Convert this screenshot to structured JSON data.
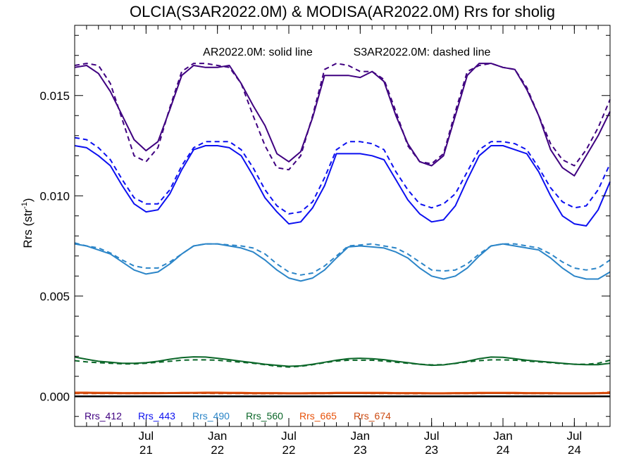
{
  "chart_data": {
    "type": "line",
    "title": "OLCIA(S3AR2022.0M) & MODISA(AR2022.0M)  Rrs for sholig",
    "annotation": {
      "solid": "AR2022.0M: solid line",
      "dashed": "S3AR2022.0M: dashed line"
    },
    "ylabel": "Rrs (str",
    "ylabel_sup": "-1",
    "ylabel_close": ")",
    "ylim": [
      -0.0015,
      0.0185
    ],
    "xlim": [
      "2021-01",
      "2024-10"
    ],
    "y_ticks": [
      {
        "value": 0.0,
        "label": "0.000"
      },
      {
        "value": 0.005,
        "label": "0.005"
      },
      {
        "value": 0.01,
        "label": "0.010"
      },
      {
        "value": 0.015,
        "label": "0.015"
      }
    ],
    "x_ticks": [
      {
        "x": "2021-07",
        "month": "Jul",
        "year": "21"
      },
      {
        "x": "2022-01",
        "month": "Jan",
        "year": "22"
      },
      {
        "x": "2022-07",
        "month": "Jul",
        "year": "22"
      },
      {
        "x": "2023-01",
        "month": "Jan",
        "year": "23"
      },
      {
        "x": "2023-07",
        "month": "Jul",
        "year": "23"
      },
      {
        "x": "2024-01",
        "month": "Jan",
        "year": "24"
      },
      {
        "x": "2024-07",
        "month": "Jul",
        "year": "24"
      }
    ],
    "x": [
      "2021-01",
      "2021-02",
      "2021-03",
      "2021-04",
      "2021-05",
      "2021-06",
      "2021-07",
      "2021-08",
      "2021-09",
      "2021-10",
      "2021-11",
      "2021-12",
      "2022-01",
      "2022-02",
      "2022-03",
      "2022-04",
      "2022-05",
      "2022-06",
      "2022-07",
      "2022-08",
      "2022-09",
      "2022-10",
      "2022-11",
      "2022-12",
      "2023-01",
      "2023-02",
      "2023-03",
      "2023-04",
      "2023-05",
      "2023-06",
      "2023-07",
      "2023-08",
      "2023-09",
      "2023-10",
      "2023-11",
      "2023-12",
      "2024-01",
      "2024-02",
      "2024-03",
      "2024-04",
      "2024-05",
      "2024-06",
      "2024-07",
      "2024-08",
      "2024-09",
      "2024-10"
    ],
    "series": [
      {
        "name": "Rrs_412",
        "color": "#3f0080",
        "style": "solid",
        "values": [
          0.0164,
          0.0165,
          0.0161,
          0.0152,
          0.014,
          0.0128,
          0.01225,
          0.0127,
          0.0143,
          0.016,
          0.0165,
          0.0164,
          0.0164,
          0.0165,
          0.0156,
          0.0145,
          0.0135,
          0.0121,
          0.0117,
          0.0122,
          0.0139,
          0.016,
          0.016,
          0.016,
          0.0159,
          0.0162,
          0.0157,
          0.014,
          0.0126,
          0.0117,
          0.0115,
          0.012,
          0.014,
          0.016,
          0.0166,
          0.0166,
          0.0164,
          0.0163,
          0.0153,
          0.014,
          0.0123,
          0.0114,
          0.011,
          0.012,
          0.013,
          0.0142
        ]
      },
      {
        "name": "Rrs_412",
        "color": "#3f0080",
        "style": "dashed",
        "values": [
          0.0165,
          0.0166,
          0.0165,
          0.0156,
          0.0138,
          0.012,
          0.0117,
          0.0124,
          0.0144,
          0.0162,
          0.0166,
          0.0166,
          0.0165,
          0.0164,
          0.0156,
          0.014,
          0.0125,
          0.0114,
          0.0113,
          0.012,
          0.014,
          0.0163,
          0.0166,
          0.0165,
          0.0162,
          0.0162,
          0.0158,
          0.0142,
          0.0125,
          0.0117,
          0.0116,
          0.0121,
          0.0142,
          0.0162,
          0.0165,
          0.0166,
          0.0164,
          0.0163,
          0.0154,
          0.014,
          0.0126,
          0.0118,
          0.0115,
          0.0123,
          0.0134,
          0.0148
        ]
      },
      {
        "name": "Rrs_443",
        "color": "#0c10f0",
        "style": "solid",
        "values": [
          0.0125,
          0.0124,
          0.012,
          0.0115,
          0.0105,
          0.0096,
          0.0092,
          0.0093,
          0.0101,
          0.0113,
          0.0123,
          0.0125,
          0.0125,
          0.0124,
          0.012,
          0.011,
          0.0099,
          0.0092,
          0.0086,
          0.0087,
          0.0094,
          0.0105,
          0.0121,
          0.0121,
          0.0121,
          0.012,
          0.0118,
          0.0108,
          0.0098,
          0.0091,
          0.0087,
          0.0088,
          0.0095,
          0.0108,
          0.012,
          0.0125,
          0.0125,
          0.0123,
          0.0121,
          0.0112,
          0.01,
          0.009,
          0.0086,
          0.0085,
          0.0093,
          0.0107
        ]
      },
      {
        "name": "Rrs_443",
        "color": "#0c10f0",
        "style": "dashed",
        "values": [
          0.0129,
          0.0128,
          0.0124,
          0.0118,
          0.0108,
          0.0099,
          0.0096,
          0.0096,
          0.0103,
          0.0115,
          0.0124,
          0.0127,
          0.0127,
          0.0127,
          0.0123,
          0.0114,
          0.0103,
          0.0095,
          0.0091,
          0.0092,
          0.0097,
          0.0109,
          0.0123,
          0.0127,
          0.0127,
          0.0126,
          0.0123,
          0.0112,
          0.0103,
          0.0096,
          0.0094,
          0.0096,
          0.0101,
          0.0112,
          0.0123,
          0.0127,
          0.0127,
          0.0126,
          0.0123,
          0.0114,
          0.0104,
          0.0097,
          0.0094,
          0.0095,
          0.0103,
          0.0116
        ]
      },
      {
        "name": "Rrs_490",
        "color": "#2b85c8",
        "style": "solid",
        "values": [
          0.0076,
          0.0075,
          0.0073,
          0.0071,
          0.0067,
          0.0063,
          0.0061,
          0.0062,
          0.0066,
          0.0071,
          0.0075,
          0.0076,
          0.0076,
          0.0075,
          0.0074,
          0.0072,
          0.0068,
          0.0063,
          0.0059,
          0.00575,
          0.0059,
          0.0063,
          0.0069,
          0.00745,
          0.0075,
          0.00745,
          0.0074,
          0.0072,
          0.0069,
          0.0064,
          0.006,
          0.00585,
          0.006,
          0.0064,
          0.007,
          0.0075,
          0.0076,
          0.0075,
          0.0074,
          0.0073,
          0.0069,
          0.0064,
          0.006,
          0.00585,
          0.00585,
          0.0062
        ]
      },
      {
        "name": "Rrs_490",
        "color": "#2b85c8",
        "style": "dashed",
        "values": [
          0.00765,
          0.0075,
          0.0074,
          0.00715,
          0.0068,
          0.0065,
          0.0064,
          0.0064,
          0.0067,
          0.0071,
          0.0075,
          0.0076,
          0.0076,
          0.00755,
          0.0075,
          0.0074,
          0.0071,
          0.0066,
          0.0062,
          0.00605,
          0.00615,
          0.0065,
          0.007,
          0.0075,
          0.00755,
          0.0076,
          0.0075,
          0.0074,
          0.0071,
          0.0067,
          0.0063,
          0.00625,
          0.0063,
          0.0066,
          0.0071,
          0.0075,
          0.0076,
          0.0076,
          0.0075,
          0.0074,
          0.0071,
          0.0067,
          0.0064,
          0.0063,
          0.0064,
          0.0068
        ]
      },
      {
        "name": "Rrs_560",
        "color": "#0a6628",
        "style": "solid",
        "values": [
          0.00196,
          0.00185,
          0.00175,
          0.0017,
          0.00165,
          0.00165,
          0.00168,
          0.00175,
          0.00185,
          0.00193,
          0.00197,
          0.00196,
          0.0019,
          0.00183,
          0.00175,
          0.00168,
          0.0016,
          0.00155,
          0.0015,
          0.00152,
          0.0016,
          0.0017,
          0.0018,
          0.00188,
          0.0019,
          0.00188,
          0.00183,
          0.00175,
          0.00168,
          0.0016,
          0.00155,
          0.00157,
          0.00165,
          0.00175,
          0.00188,
          0.00196,
          0.00195,
          0.00188,
          0.0018,
          0.00175,
          0.0017,
          0.00165,
          0.0016,
          0.00158,
          0.00158,
          0.00165
        ]
      },
      {
        "name": "Rrs_560",
        "color": "#0a6628",
        "style": "dashed",
        "values": [
          0.00178,
          0.00172,
          0.00168,
          0.00165,
          0.00162,
          0.00162,
          0.00165,
          0.0017,
          0.00175,
          0.0018,
          0.00182,
          0.00182,
          0.0018,
          0.00175,
          0.0017,
          0.00165,
          0.00158,
          0.0015,
          0.00146,
          0.0015,
          0.00158,
          0.00168,
          0.00176,
          0.0018,
          0.0018,
          0.0018,
          0.00176,
          0.0017,
          0.00165,
          0.0016,
          0.00157,
          0.00158,
          0.00164,
          0.00172,
          0.00178,
          0.00182,
          0.00182,
          0.0018,
          0.00176,
          0.00172,
          0.00168,
          0.00163,
          0.0016,
          0.0016,
          0.00165,
          0.0018
        ]
      },
      {
        "name": "Rrs_665",
        "color": "#e8520a",
        "style": "solid",
        "values": [
          0.0002,
          0.0002,
          0.00019,
          0.00019,
          0.00018,
          0.00018,
          0.00018,
          0.00018,
          0.00018,
          0.00019,
          0.00019,
          0.0002,
          0.0002,
          0.00019,
          0.00019,
          0.00018,
          0.00018,
          0.00018,
          0.00017,
          0.00017,
          0.00018,
          0.00018,
          0.00019,
          0.00019,
          0.00019,
          0.00019,
          0.00019,
          0.00018,
          0.00018,
          0.00018,
          0.00017,
          0.00017,
          0.00018,
          0.00018,
          0.00019,
          0.00019,
          0.00019,
          0.00019,
          0.00018,
          0.00018,
          0.00018,
          0.00017,
          0.00017,
          0.00017,
          0.00018,
          0.00019
        ]
      },
      {
        "name": "Rrs_665",
        "color": "#e8520a",
        "style": "dashed",
        "values": [
          0.00017,
          0.00017,
          0.00017,
          0.00017,
          0.00017,
          0.00017,
          0.00018,
          0.00018,
          0.00018,
          0.00018,
          0.00018,
          0.00018,
          0.00017,
          0.00017,
          0.00017,
          0.00016,
          0.00016,
          0.00016,
          0.00016,
          0.00016,
          0.00017,
          0.00017,
          0.00018,
          0.00018,
          0.00018,
          0.00017,
          0.00017,
          0.00017,
          0.00016,
          0.00016,
          0.00016,
          0.00016,
          0.00017,
          0.00017,
          0.00017,
          0.00018,
          0.00018,
          0.00017,
          0.00017,
          0.00017,
          0.00016,
          0.00016,
          0.00016,
          0.00016,
          0.00017,
          0.00022
        ]
      },
      {
        "name": "Rrs_674",
        "color": "#cc4a10",
        "style": "solid",
        "values": [
          0.00016,
          0.00016,
          0.00015,
          0.00015,
          0.00014,
          0.00014,
          0.00014,
          0.00014,
          0.00015,
          0.00015,
          0.00016,
          0.00016,
          0.00016,
          0.00015,
          0.00015,
          0.00014,
          0.00014,
          0.00014,
          0.00013,
          0.00013,
          0.00014,
          0.00014,
          0.00015,
          0.00015,
          0.00015,
          0.00015,
          0.00015,
          0.00014,
          0.00014,
          0.00014,
          0.00013,
          0.00013,
          0.00014,
          0.00014,
          0.00015,
          0.00015,
          0.00015,
          0.00015,
          0.00014,
          0.00014,
          0.00014,
          0.00013,
          0.00013,
          0.00013,
          0.00014,
          0.00015
        ]
      },
      {
        "name": "Rrs_674",
        "color": "#cc4a10",
        "style": "dashed",
        "values": [
          0.00014,
          0.00014,
          0.00014,
          0.00014,
          0.00014,
          0.00014,
          0.00015,
          0.00015,
          0.00015,
          0.00015,
          0.00015,
          0.00015,
          0.00014,
          0.00014,
          0.00014,
          0.00013,
          0.00013,
          0.00013,
          0.00013,
          0.00013,
          0.00014,
          0.00014,
          0.00015,
          0.00015,
          0.00015,
          0.00014,
          0.00014,
          0.00014,
          0.00013,
          0.00013,
          0.00013,
          0.00013,
          0.00014,
          0.00014,
          0.00014,
          0.00015,
          0.00015,
          0.00014,
          0.00014,
          0.00014,
          0.00013,
          0.00013,
          0.00013,
          0.00013,
          0.00014,
          0.00019
        ]
      }
    ],
    "legend": [
      {
        "label": "Rrs_412",
        "color": "#3f0080"
      },
      {
        "label": "Rrs_443",
        "color": "#0c10f0"
      },
      {
        "label": "Rrs_490",
        "color": "#2b85c8"
      },
      {
        "label": "Rrs_560",
        "color": "#0a6628"
      },
      {
        "label": "Rrs_665",
        "color": "#e8520a"
      },
      {
        "label": "Rrs_674",
        "color": "#cc4a10"
      }
    ],
    "legend_position": "bottom-left, inside plot",
    "zero_line": true,
    "grid": false
  }
}
